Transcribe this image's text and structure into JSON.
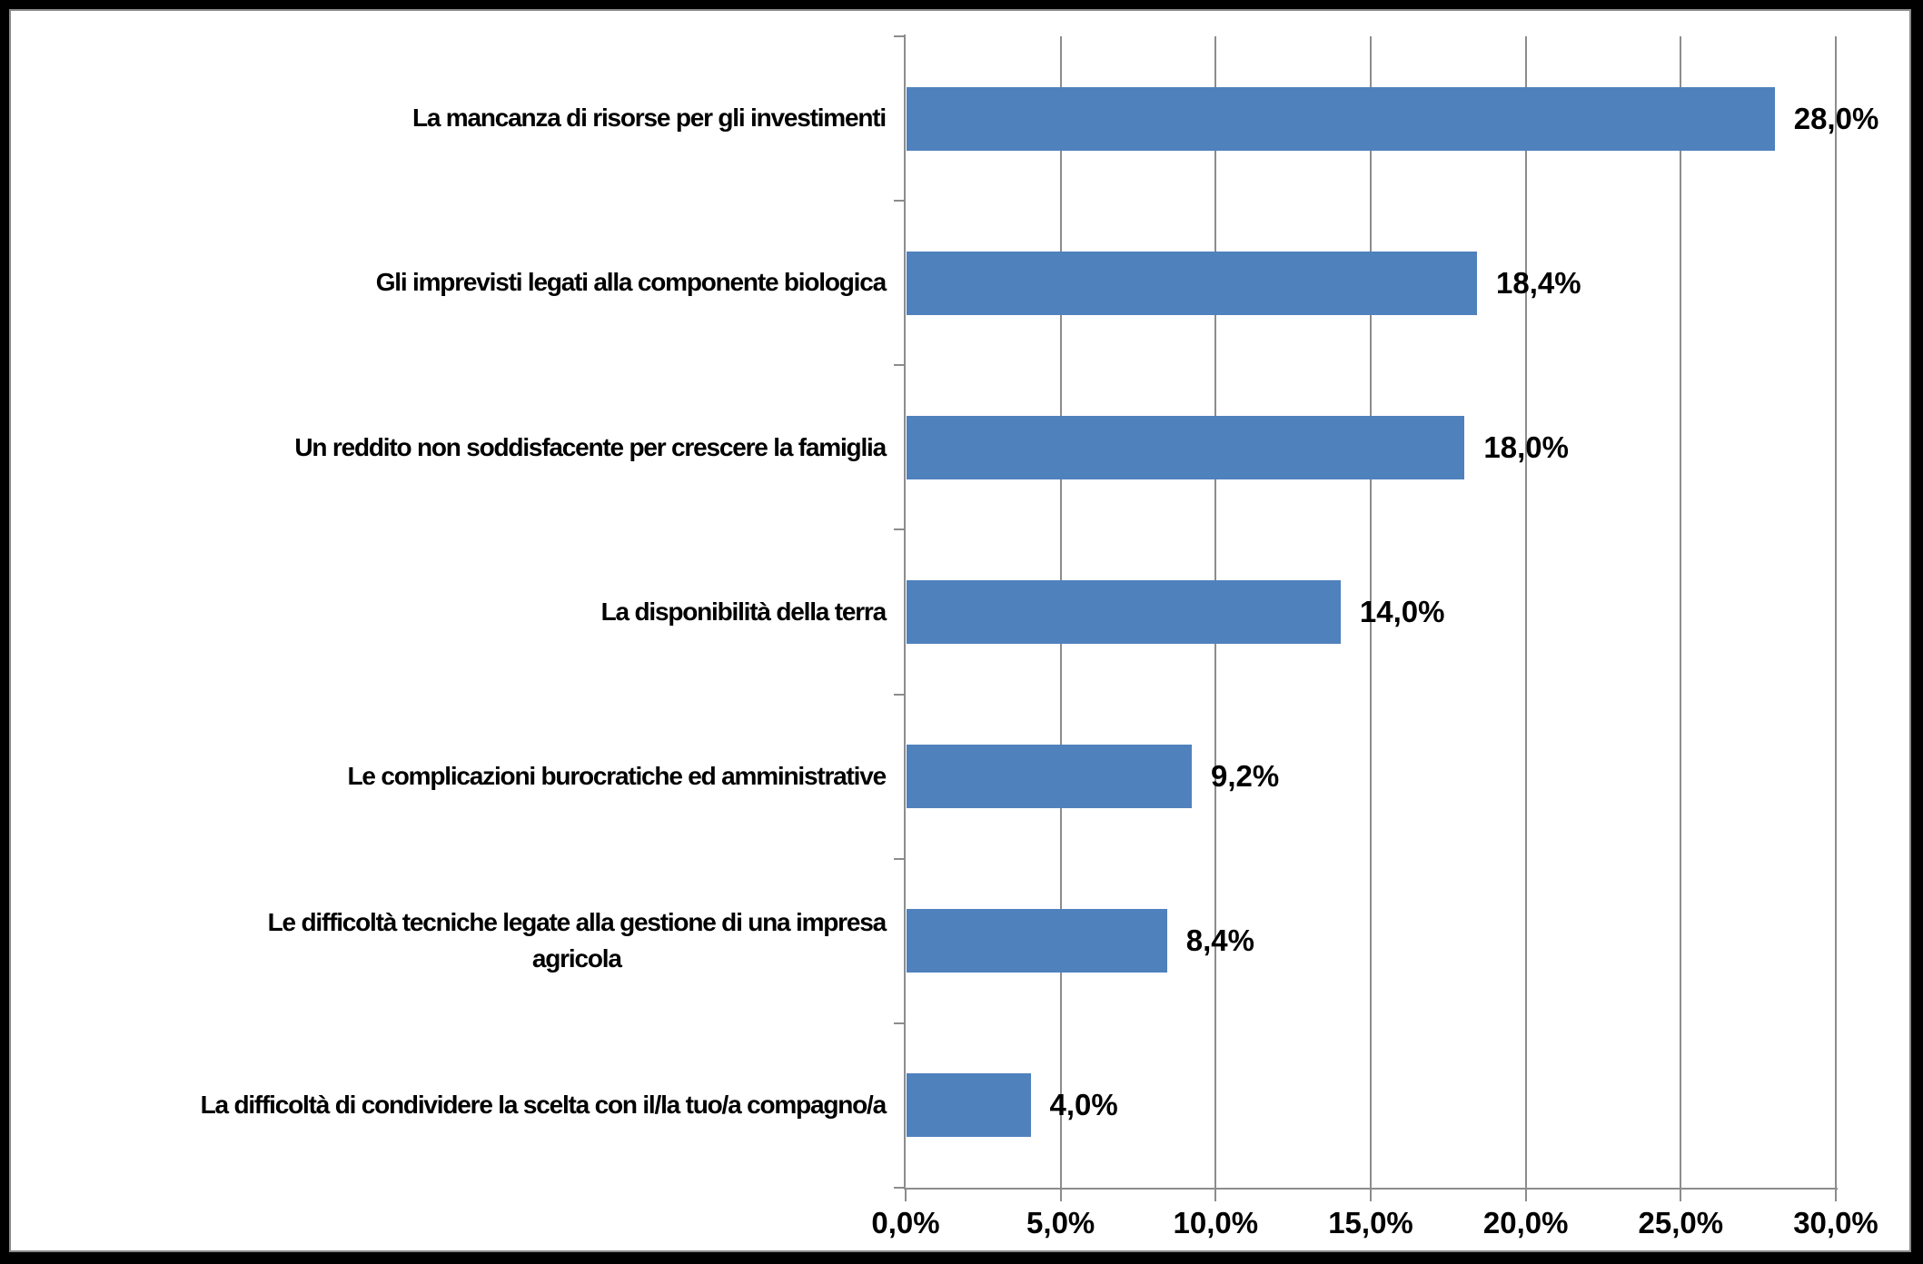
{
  "chart_data": {
    "type": "bar",
    "orientation": "horizontal",
    "title": "",
    "categories": [
      "La mancanza di risorse per gli investimenti",
      "Gli imprevisti legati alla componente biologica",
      "Un reddito non soddisfacente per crescere la famiglia",
      "La disponibilità della terra",
      "Le complicazioni burocratiche ed amministrative",
      "Le difficoltà tecniche legate alla gestione di una impresa agricola",
      "La difficoltà di condividere la scelta con il/la tuo/a compagno/a"
    ],
    "category_display": [
      "La mancanza di risorse per gli investimenti",
      "Gli imprevisti legati alla componente biologica",
      "Un reddito non soddisfacente per crescere la famiglia",
      "La disponibilità della terra",
      "Le complicazioni burocratiche ed amministrative",
      "Le difficoltà tecniche legate alla gestione di una impresa\nagricola",
      "La difficoltà di condividere la scelta con il/la tuo/a compagno/a"
    ],
    "values": [
      28.0,
      18.4,
      18.0,
      14.0,
      9.2,
      8.4,
      4.0
    ],
    "value_labels": [
      "28,0%",
      "18,4%",
      "18,0%",
      "14,0%",
      "9,2%",
      "8,4%",
      "4,0%"
    ],
    "x_ticks": [
      "0,0%",
      "5,0%",
      "10,0%",
      "15,0%",
      "20,0%",
      "25,0%",
      "30,0%"
    ],
    "x_tick_values": [
      0,
      5,
      10,
      15,
      20,
      25,
      30
    ],
    "xlim": [
      0,
      30
    ],
    "grid": true,
    "legend": "none",
    "colors": {
      "bar": "#4F81BD",
      "axis": "#8C8C8C",
      "gridline": "#8C8C8C",
      "text": "#000000",
      "background": "#FFFFFF",
      "frame": "#000000"
    }
  }
}
